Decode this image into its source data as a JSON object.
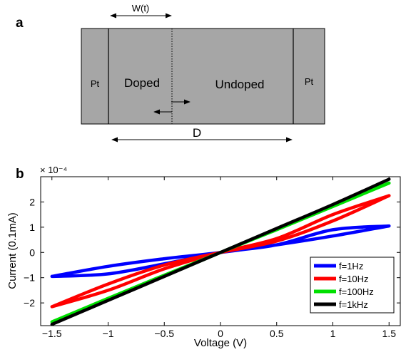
{
  "panel_a": {
    "label": "a",
    "width_label": "W(t)",
    "left_electrode": "Pt",
    "right_electrode": "Pt",
    "doped_label": "Doped",
    "undoped_label": "Undoped",
    "device_label": "D",
    "colors": {
      "device_fill": "#a6a6a6",
      "outline": "#000000"
    }
  },
  "panel_b": {
    "label": "b",
    "exponent_label": "× 10⁻⁴"
  },
  "chart_data": {
    "type": "line",
    "title": "",
    "xlabel": "Voltage (V)",
    "ylabel": "Current (0.1mA)",
    "xlim": [
      -1.6,
      1.6
    ],
    "ylim": [
      -2.9,
      3.0
    ],
    "xticks": [
      -1.5,
      -1,
      -0.5,
      0,
      0.5,
      1,
      1.5
    ],
    "xtick_labels": [
      "−1.5",
      "−1",
      "−0.5",
      "0",
      "0.5",
      "1",
      "1.5"
    ],
    "yticks": [
      -2,
      -1,
      0,
      1,
      2
    ],
    "ytick_labels": [
      "−2",
      "−1",
      "0",
      "1",
      "2"
    ],
    "y_scale_factor": "1e-4",
    "grid": false,
    "legend_position": "bottom-right",
    "series": [
      {
        "name": "f=1Hz",
        "color": "#0000ff",
        "upper_branch": [
          [
            -1.5,
            -0.95
          ],
          [
            -1.0,
            -0.55
          ],
          [
            -0.5,
            -0.25
          ],
          [
            0,
            0
          ],
          [
            0.5,
            0.3
          ],
          [
            1.0,
            0.65
          ],
          [
            1.5,
            1.05
          ]
        ],
        "lower_branch": [
          [
            -1.5,
            -0.95
          ],
          [
            -1.0,
            -0.85
          ],
          [
            -0.5,
            -0.45
          ],
          [
            0,
            0
          ],
          [
            0.5,
            0.3
          ],
          [
            1.0,
            0.9
          ],
          [
            1.5,
            1.05
          ]
        ]
      },
      {
        "name": "f=10Hz",
        "color": "#ff0000",
        "upper_branch": [
          [
            -1.5,
            -2.15
          ],
          [
            -1.0,
            -1.25
          ],
          [
            -0.5,
            -0.5
          ],
          [
            0,
            0
          ],
          [
            0.5,
            0.45
          ],
          [
            1.0,
            1.25
          ],
          [
            1.5,
            2.25
          ]
        ],
        "lower_branch": [
          [
            -1.5,
            -2.15
          ],
          [
            -1.0,
            -1.5
          ],
          [
            -0.5,
            -0.65
          ],
          [
            0,
            0
          ],
          [
            0.5,
            0.55
          ],
          [
            1.0,
            1.5
          ],
          [
            1.5,
            2.25
          ]
        ]
      },
      {
        "name": "f=100Hz",
        "color": "#00e000",
        "upper_branch": [
          [
            -1.5,
            -2.75
          ],
          [
            -1.0,
            -1.82
          ],
          [
            -0.5,
            -0.9
          ],
          [
            0,
            0
          ],
          [
            0.5,
            0.9
          ],
          [
            1.0,
            1.82
          ],
          [
            1.5,
            2.75
          ]
        ],
        "lower_branch": [
          [
            -1.5,
            -2.75
          ],
          [
            -1.0,
            -1.86
          ],
          [
            -0.5,
            -0.94
          ],
          [
            0,
            0
          ],
          [
            0.5,
            0.94
          ],
          [
            1.0,
            1.86
          ],
          [
            1.5,
            2.75
          ]
        ]
      },
      {
        "name": "f=1kHz",
        "color": "#000000",
        "upper_branch": [
          [
            -1.5,
            -2.85
          ],
          [
            -1.0,
            -1.9
          ],
          [
            -0.5,
            -0.95
          ],
          [
            0,
            0
          ],
          [
            0.5,
            0.95
          ],
          [
            1.0,
            1.9
          ],
          [
            1.5,
            2.9
          ]
        ],
        "lower_branch": [
          [
            -1.5,
            -2.85
          ],
          [
            -1.0,
            -1.9
          ],
          [
            -0.5,
            -0.95
          ],
          [
            0,
            0
          ],
          [
            0.5,
            0.95
          ],
          [
            1.0,
            1.9
          ],
          [
            1.5,
            2.9
          ]
        ]
      }
    ]
  }
}
